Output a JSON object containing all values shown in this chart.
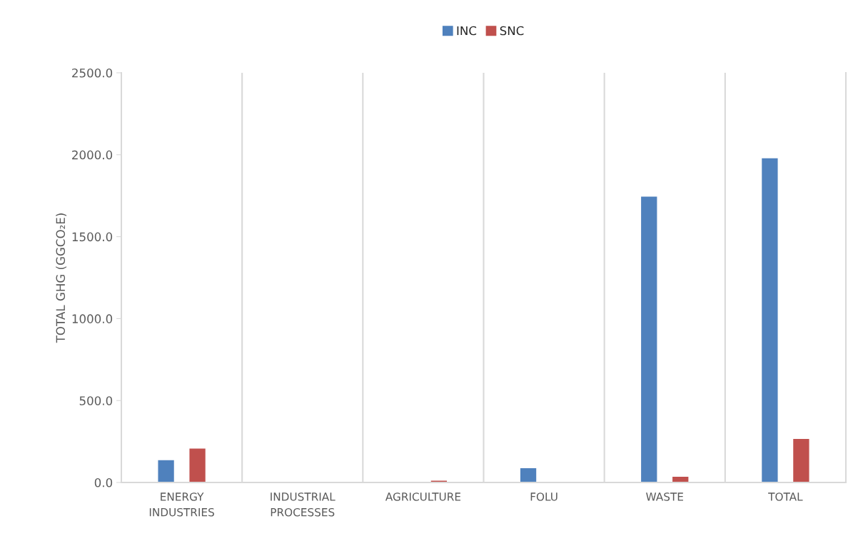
{
  "chart_data": {
    "type": "bar",
    "ylabel": "TOTAL GHG (GGCO₂E)",
    "categories": [
      "ENERGY\nINDUSTRIES",
      "INDUSTRIAL\nPROCESSES",
      "AGRICULTURE",
      "FOLU",
      "WASTE",
      "TOTAL"
    ],
    "series": [
      {
        "name": "INC",
        "color": "#4f81bd",
        "values": [
          139,
          null,
          null,
          90,
          1747,
          1982
        ]
      },
      {
        "name": "SNC",
        "color": "#c0504d",
        "values": [
          210,
          null,
          14,
          null,
          38,
          269
        ]
      }
    ],
    "ylim": [
      0,
      2500
    ],
    "yticks": [
      {
        "value": 0,
        "label": "0.0"
      },
      {
        "value": 500,
        "label": "500.0"
      },
      {
        "value": 1000,
        "label": "1000.0"
      },
      {
        "value": 1500,
        "label": "1500.0"
      },
      {
        "value": 2000,
        "label": "2000.0"
      },
      {
        "value": 2500,
        "label": "2500.0"
      }
    ],
    "grid": "x",
    "legend": "top"
  }
}
